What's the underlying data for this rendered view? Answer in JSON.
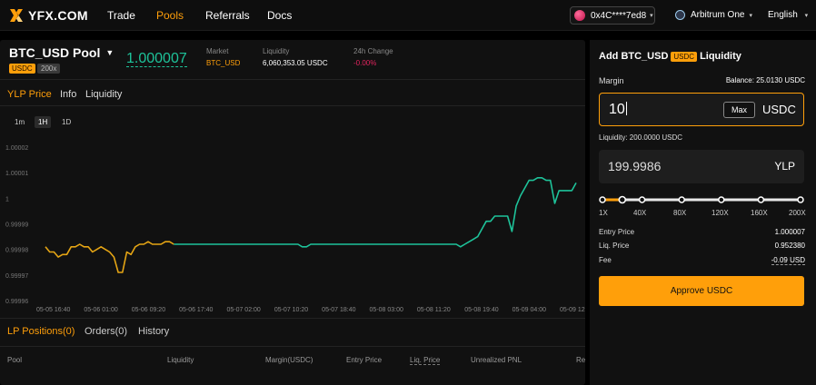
{
  "nav": {
    "logo_text": "YFX.COM",
    "links": [
      "Trade",
      "Pools",
      "Referrals",
      "Docs"
    ],
    "active_link": "Pools",
    "wallet": "0x4C****7ed8",
    "network": "Arbitrum One",
    "language": "English"
  },
  "pool": {
    "name": "BTC_USD Pool",
    "collateral_tag": "USDC",
    "leverage_tag": "200x",
    "price": "1.000007",
    "market_label": "Market",
    "market_value": "BTC_USD",
    "liquidity_label": "Liquidity",
    "liquidity_value": "6,060,353.05 USDC",
    "change_label": "24h Change",
    "change_value": "-0.00%"
  },
  "tabs": [
    "YLP Price",
    "Info",
    "Liquidity"
  ],
  "active_tab": "YLP Price",
  "timeframes": [
    "1m",
    "1H",
    "1D"
  ],
  "active_timeframe": "1H",
  "chart_data": {
    "type": "line",
    "y_ticks": [
      "1.00002",
      "1.00001",
      "1",
      "0.99999",
      "0.99998",
      "0.99997",
      "0.99996"
    ],
    "ylim": [
      0.99996,
      1.00002
    ],
    "x_ticks": [
      "05-05 16:40",
      "05-06 01:00",
      "05-06 09:20",
      "05-06 17:40",
      "05-07 02:00",
      "05-07 10:20",
      "05-07 18:40",
      "05-08 03:00",
      "05-08 11:20",
      "05-08 19:40",
      "05-09 04:00",
      "05-09 12:20"
    ],
    "series": [
      {
        "color": "#e5a514",
        "values": [
          0.999981,
          0.999979,
          0.999979,
          0.999977,
          0.999978,
          0.999978,
          0.999981,
          0.999981,
          0.999982,
          0.999981,
          0.999981,
          0.999979,
          0.99998,
          0.999981,
          0.99998,
          0.999979,
          0.999977,
          0.999971,
          0.999971,
          0.999979,
          0.999978,
          0.999981,
          0.999982,
          0.999982,
          0.999983,
          0.999982,
          0.999982,
          0.999982,
          0.999983,
          0.999983,
          0.999982
        ]
      },
      {
        "color": "#1ec39a",
        "values": [
          0.999982,
          0.999982,
          0.999982,
          0.999982,
          0.999982,
          0.999982,
          0.999982,
          0.999982,
          0.999982,
          0.999982,
          0.999982,
          0.999982,
          0.999982,
          0.999982,
          0.999982,
          0.999982,
          0.999982,
          0.999982,
          0.999982,
          0.999982,
          0.999982,
          0.999982,
          0.999982,
          0.999982,
          0.999982,
          0.999982,
          0.999982,
          0.999982,
          0.999982,
          0.999982,
          0.999981,
          0.999981,
          0.999982,
          0.999982,
          0.999982,
          0.999982,
          0.999982,
          0.999982,
          0.999982,
          0.999982,
          0.999982,
          0.999982,
          0.999982,
          0.999982,
          0.999982,
          0.999982,
          0.999982,
          0.999982,
          0.999982,
          0.999982,
          0.999982,
          0.999982,
          0.999982,
          0.999982,
          0.999982,
          0.999982,
          0.999982,
          0.999982,
          0.999982,
          0.999982,
          0.999982,
          0.999982,
          0.999982,
          0.999982,
          0.999982,
          0.999982,
          0.999982,
          0.999981,
          0.999982,
          0.999983,
          0.999984,
          0.999985,
          0.999988,
          0.999991,
          0.999991,
          0.999993,
          0.999993,
          0.999993,
          0.999993,
          0.999987,
          0.999997,
          1.000001,
          1.000004,
          1.000007,
          1.000007,
          1.000008,
          1.000008,
          1.000007,
          1.000007,
          0.999998,
          1.000003,
          1.000003,
          1.000003,
          1.000003,
          1.000006
        ]
      }
    ]
  },
  "bottom": {
    "tabs": [
      "LP Positions(0)",
      "Orders(0)",
      "History"
    ],
    "active_tab": "LP Positions(0)",
    "columns": [
      "Pool",
      "Liquidity",
      "Margin(USDC)",
      "Entry Price",
      "Liq. Price",
      "Unrealized PNL",
      "Re"
    ]
  },
  "form": {
    "title_prefix": "Add BTC_USD",
    "title_tag": "USDC",
    "title_suffix": "Liquidity",
    "margin_label": "Margin",
    "balance": "Balance:  25.0130 USDC",
    "margin_value": "10",
    "max_label": "Max",
    "margin_unit": "USDC",
    "liquidity_text": "Liquidity: 200.0000 USDC",
    "ylp_value": "199.9986",
    "ylp_unit": "YLP",
    "leverage_labels": [
      "1X",
      "40X",
      "80X",
      "120X",
      "160X",
      "200X"
    ],
    "leverage_selected_fraction": 0.1,
    "entry_price_label": "Entry Price",
    "entry_price": "1.000007",
    "liq_price_label": "Liq. Price",
    "liq_price": "0.952380",
    "fee_label": "Fee",
    "fee": "-0.09 USD",
    "approve_label": "Approve USDC",
    "accent": "#ff9f0a"
  }
}
